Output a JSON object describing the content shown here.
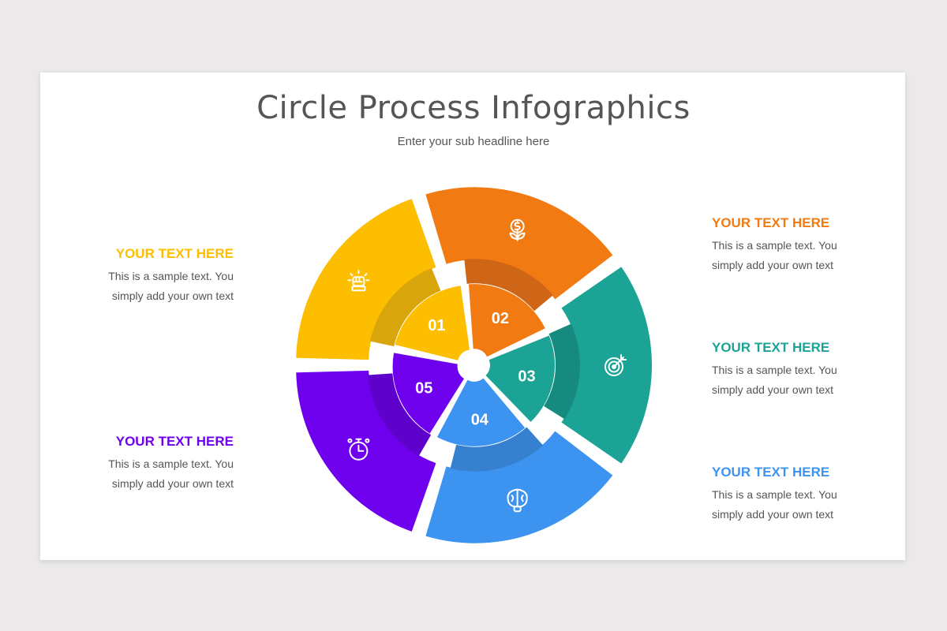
{
  "slide": {
    "title": "Circle Process Infographics",
    "subtitle": "Enter your sub headline here"
  },
  "steps": [
    {
      "number": "01",
      "heading": "YOUR TEXT HERE",
      "text_line1": "This is a sample text. You",
      "text_line2": "simply add your own text",
      "color": "#FDBE00",
      "dark": "#D8A60C",
      "icon": "fist-icon"
    },
    {
      "number": "02",
      "heading": "YOUR TEXT HERE",
      "text_line1": "This is a sample text. You",
      "text_line2": "simply add your own text",
      "color": "#F27A12",
      "dark": "#CF6517",
      "icon": "money-plant-icon"
    },
    {
      "number": "03",
      "heading": "YOUR TEXT HERE",
      "text_line1": "This is a sample text. You",
      "text_line2": "simply add your own text",
      "color": "#1BA396",
      "dark": "#178A80",
      "icon": "target-icon"
    },
    {
      "number": "04",
      "heading": "YOUR TEXT HERE",
      "text_line1": "This is a sample text. You",
      "text_line2": "simply add your own text",
      "color": "#3D94F0",
      "dark": "#3680CF",
      "icon": "brain-bulb-icon"
    },
    {
      "number": "05",
      "heading": "YOUR TEXT HERE",
      "text_line1": "This is a sample text. You",
      "text_line2": "simply add your own text",
      "color": "#6E00EE",
      "dark": "#5E02CB",
      "icon": "stopwatch-icon"
    }
  ]
}
